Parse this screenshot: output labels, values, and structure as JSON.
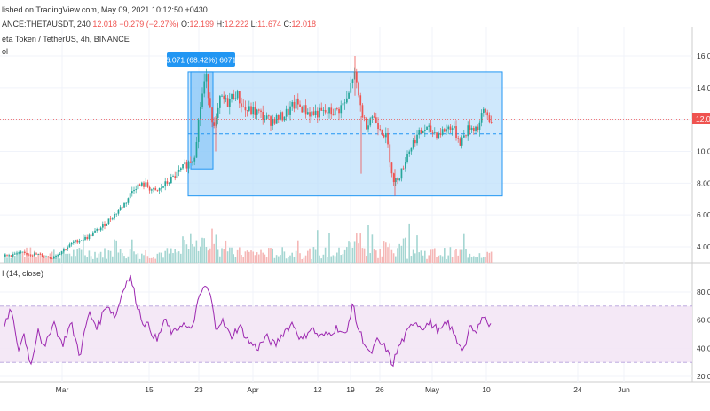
{
  "header": {
    "published": "lished on TradingView.com, May 09, 2021 10:12:50 +0430",
    "ticker": "ANCE:THETAUSDT, 240",
    "last": "12.018",
    "change": "−0.279 (−2.27%)",
    "o_label": "O:",
    "o_value": "12.199",
    "h_label": "H:",
    "h_value": "12.222",
    "l_label": "L:",
    "l_value": "11.674",
    "c_label": "C:",
    "c_value": "12.018",
    "symbol_title": "eta Token / TetherUS, 4h, BINANCE",
    "vol_label": "ol"
  },
  "price_badge": "12.0",
  "measure_label": "6.071 (68.42%) 6071",
  "rsi_label": "I (14, close)",
  "colors": {
    "up": "#26a69a",
    "down": "#ef5350",
    "range_fill": "#bbdefb",
    "range_stroke": "#2196f3",
    "rsi_line": "#9c27b0",
    "rsi_band": "#f3e5f5",
    "badge": "#ef5350"
  },
  "chart_data": [
    {
      "type": "candlestick",
      "name": "THETAUSDT price",
      "y_ticks": [
        "16.00",
        "14.00",
        "12.00",
        "10.00",
        "8.00",
        "6.00",
        "4.00"
      ],
      "ylim": [
        2.8,
        16.8
      ],
      "x_ticks": [
        "Mar",
        "15",
        "23",
        "Apr",
        "12",
        "19",
        "26",
        "May",
        "10",
        "24",
        "Jun"
      ],
      "current_price": 12.018,
      "range_box": {
        "from_price": 7.2,
        "to_price": 15.0,
        "change": "6.071 (68.42%)"
      },
      "close_path": [
        [
          0,
          3.4
        ],
        [
          20,
          3.6
        ],
        [
          40,
          3.5
        ],
        [
          55,
          3.3
        ],
        [
          68,
          3.8
        ],
        [
          80,
          4.3
        ],
        [
          95,
          4.6
        ],
        [
          110,
          5.2
        ],
        [
          125,
          6.0
        ],
        [
          138,
          6.8
        ],
        [
          148,
          7.8
        ],
        [
          160,
          7.9
        ],
        [
          172,
          7.4
        ],
        [
          182,
          7.9
        ],
        [
          195,
          8.5
        ],
        [
          205,
          9.1
        ],
        [
          215,
          9.6
        ],
        [
          222,
          12.8
        ],
        [
          228,
          14.8
        ],
        [
          233,
          13.0
        ],
        [
          238,
          11.3
        ],
        [
          245,
          13.4
        ],
        [
          252,
          13.0
        ],
        [
          262,
          13.7
        ],
        [
          272,
          12.6
        ],
        [
          285,
          12.5
        ],
        [
          300,
          11.9
        ],
        [
          315,
          12.2
        ],
        [
          330,
          13.0
        ],
        [
          345,
          12.4
        ],
        [
          360,
          12.4
        ],
        [
          375,
          12.5
        ],
        [
          388,
          13.2
        ],
        [
          395,
          15.0
        ],
        [
          402,
          13.0
        ],
        [
          408,
          11.6
        ],
        [
          415,
          12.3
        ],
        [
          425,
          11.5
        ],
        [
          432,
          10.8
        ],
        [
          440,
          8.0
        ],
        [
          448,
          8.6
        ],
        [
          455,
          9.8
        ],
        [
          465,
          10.9
        ],
        [
          475,
          11.4
        ],
        [
          490,
          11.1
        ],
        [
          505,
          11.6
        ],
        [
          515,
          10.6
        ],
        [
          525,
          11.5
        ],
        [
          535,
          11.5
        ],
        [
          542,
          12.6
        ],
        [
          548,
          12.0
        ]
      ]
    },
    {
      "type": "line",
      "name": "RSI (14, close)",
      "y_ticks": [
        "80.00",
        "60.00",
        "40.00",
        "20.00"
      ],
      "ylim": [
        15,
        95
      ],
      "band": [
        30,
        70
      ],
      "midline": 50,
      "path": [
        [
          0,
          55
        ],
        [
          8,
          68
        ],
        [
          15,
          38
        ],
        [
          22,
          50
        ],
        [
          30,
          28
        ],
        [
          38,
          55
        ],
        [
          45,
          38
        ],
        [
          55,
          60
        ],
        [
          65,
          42
        ],
        [
          75,
          58
        ],
        [
          85,
          35
        ],
        [
          95,
          65
        ],
        [
          105,
          55
        ],
        [
          115,
          72
        ],
        [
          125,
          62
        ],
        [
          135,
          85
        ],
        [
          142,
          91
        ],
        [
          148,
          75
        ],
        [
          155,
          60
        ],
        [
          163,
          55
        ],
        [
          172,
          45
        ],
        [
          180,
          60
        ],
        [
          190,
          50
        ],
        [
          200,
          58
        ],
        [
          210,
          52
        ],
        [
          218,
          72
        ],
        [
          225,
          85
        ],
        [
          232,
          78
        ],
        [
          238,
          55
        ],
        [
          245,
          60
        ],
        [
          255,
          48
        ],
        [
          265,
          56
        ],
        [
          275,
          45
        ],
        [
          285,
          40
        ],
        [
          295,
          48
        ],
        [
          305,
          42
        ],
        [
          315,
          52
        ],
        [
          325,
          58
        ],
        [
          335,
          45
        ],
        [
          345,
          55
        ],
        [
          355,
          48
        ],
        [
          365,
          50
        ],
        [
          375,
          55
        ],
        [
          385,
          48
        ],
        [
          392,
          72
        ],
        [
          398,
          55
        ],
        [
          405,
          45
        ],
        [
          412,
          35
        ],
        [
          420,
          45
        ],
        [
          430,
          40
        ],
        [
          437,
          28
        ],
        [
          445,
          42
        ],
        [
          455,
          52
        ],
        [
          462,
          60
        ],
        [
          470,
          55
        ],
        [
          480,
          58
        ],
        [
          490,
          52
        ],
        [
          500,
          58
        ],
        [
          510,
          45
        ],
        [
          518,
          40
        ],
        [
          525,
          55
        ],
        [
          532,
          50
        ],
        [
          538,
          65
        ],
        [
          543,
          60
        ],
        [
          548,
          55
        ]
      ]
    }
  ]
}
